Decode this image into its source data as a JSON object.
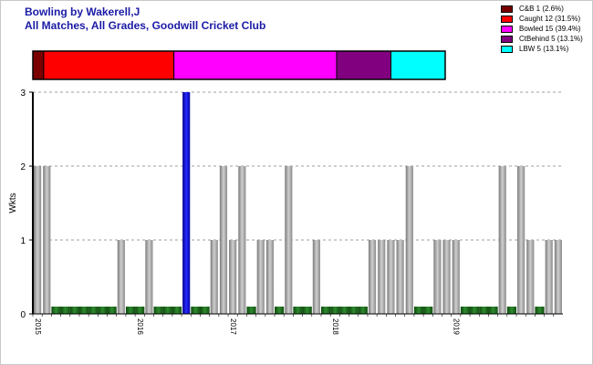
{
  "header": {
    "title": "Bowling by Wakerell,J",
    "subtitle": "All Matches, All Grades, Goodwill Cricket Club"
  },
  "legend": [
    {
      "label": "C&B 1 (2.6%)",
      "color": "#7a0000"
    },
    {
      "label": "Caught 12 (31.5%)",
      "color": "#ff0000"
    },
    {
      "label": "Bowled 15 (39.4%)",
      "color": "#ff00ff"
    },
    {
      "label": "CtBehind 5 (13.1%)",
      "color": "#800080"
    },
    {
      "label": "LBW 5 (13.1%)",
      "color": "#00ffff"
    }
  ],
  "chart_data": [
    {
      "type": "bar",
      "orientation": "horizontal-stacked",
      "series": [
        {
          "name": "C&B",
          "value": 1,
          "percent": 2.6,
          "color": "#7a0000"
        },
        {
          "name": "Caught",
          "value": 12,
          "percent": 31.5,
          "color": "#ff0000"
        },
        {
          "name": "Bowled",
          "value": 15,
          "percent": 39.4,
          "color": "#ff00ff"
        },
        {
          "name": "CtBehind",
          "value": 5,
          "percent": 13.1,
          "color": "#800080"
        },
        {
          "name": "LBW",
          "value": 5,
          "percent": 13.1,
          "color": "#00ffff"
        }
      ]
    },
    {
      "type": "bar",
      "ylabel": "Wkts",
      "ylim": [
        0,
        3
      ],
      "yticks": [
        0,
        1,
        2,
        3
      ],
      "xlabels": [
        {
          "label": "2015",
          "index": 0
        },
        {
          "label": "2016",
          "index": 11
        },
        {
          "label": "2017",
          "index": 21
        },
        {
          "label": "2018",
          "index": 32
        },
        {
          "label": "2019",
          "index": 45
        }
      ],
      "grid": true,
      "values": [
        2,
        2,
        0,
        0,
        0,
        0,
        0,
        0,
        0,
        1,
        0,
        0,
        1,
        0,
        0,
        0,
        3,
        0,
        0,
        1,
        2,
        1,
        2,
        0,
        1,
        1,
        0,
        2,
        0,
        0,
        1,
        0,
        0,
        0,
        0,
        0,
        1,
        1,
        1,
        1,
        2,
        0,
        0,
        1,
        1,
        1,
        0,
        0,
        0,
        0,
        2,
        0,
        2,
        1,
        0,
        1,
        1
      ],
      "highlight_index": 16,
      "colors": {
        "bar": "#a8a8a8",
        "highlight": "#0000cc",
        "zero_marker": "#1e6b1e",
        "grid": "#808080"
      }
    }
  ]
}
